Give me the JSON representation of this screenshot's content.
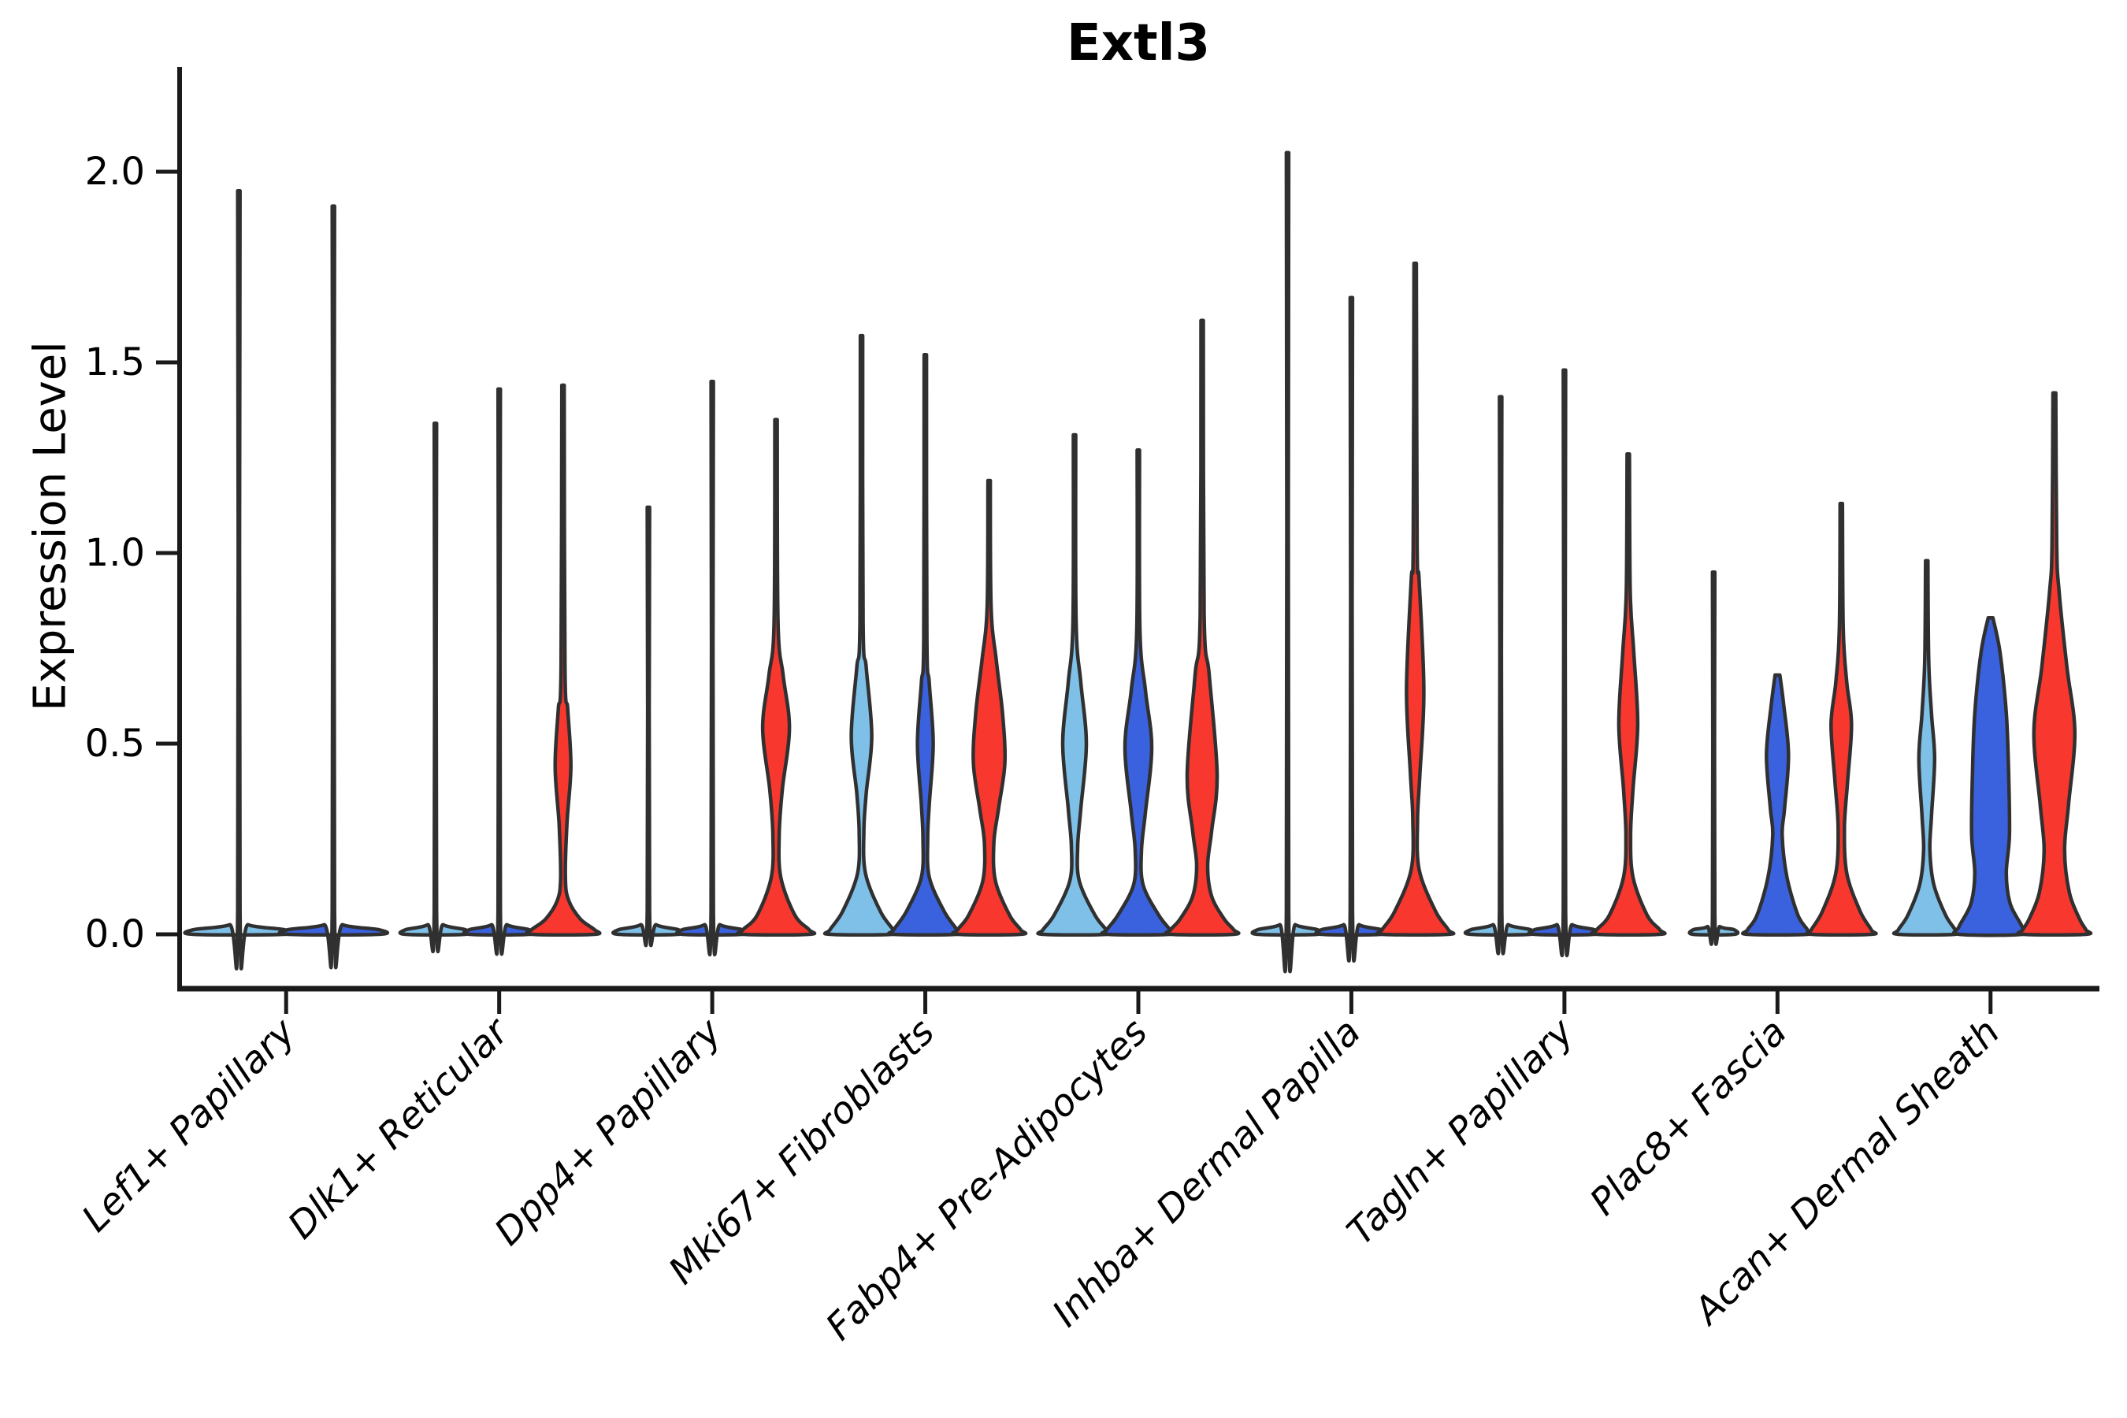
{
  "chart_data": {
    "type": "violin",
    "title": "Extl3",
    "ylabel": "Expression Level",
    "xlabel": "",
    "ytick_labels": [
      "0.0",
      "0.5",
      "1.0",
      "1.5",
      "2.0"
    ],
    "ytick_values": [
      0,
      0.5,
      1.0,
      1.5,
      2.0
    ],
    "ylim": [
      -0.08,
      2.27
    ],
    "grid": false,
    "legend_position": "none",
    "palette": {
      "light_blue": "#7EC0E8",
      "blue": "#3A62DE",
      "red": "#F8372E",
      "outline": "#303030",
      "axis": "#1A1A1A",
      "text": "#000000"
    },
    "categories": [
      "Lef1+ Papillary",
      "Dlk1+ Reticular",
      "Dpp4+ Papillary",
      "Mki67+ Fibroblasts",
      "Fabp4+ Pre-Adipocytes",
      "Inhba+ Dermal Papilla",
      "Tagln+ Papillary",
      "Plac8+ Fascia",
      "Acan+ Dermal Sheath"
    ],
    "groups": [
      {
        "category": "Lef1+ Papillary",
        "violins": [
          {
            "hue": "light_blue",
            "max": 1.95,
            "profile": [
              [
                1.95,
                1.5
              ],
              [
                0.06,
                1.5
              ],
              [
                0.025,
                12
              ],
              [
                0.012,
                58
              ],
              [
                0,
                58
              ]
            ]
          },
          {
            "hue": "blue",
            "max": 1.91,
            "profile": [
              [
                1.91,
                1.5
              ],
              [
                0.06,
                1.5
              ],
              [
                0.025,
                12
              ],
              [
                0.012,
                58
              ],
              [
                0,
                58
              ]
            ]
          }
        ]
      },
      {
        "category": "Dlk1+ Reticular",
        "violins": [
          {
            "hue": "light_blue",
            "max": 1.34,
            "profile": [
              [
                1.34,
                1.5
              ],
              [
                0.06,
                1.5
              ],
              [
                0.025,
                10
              ],
              [
                0.012,
                38
              ],
              [
                0,
                38
              ]
            ]
          },
          {
            "hue": "blue",
            "max": 1.43,
            "profile": [
              [
                1.43,
                1.5
              ],
              [
                0.06,
                1.5
              ],
              [
                0.025,
                10
              ],
              [
                0.012,
                38
              ],
              [
                0,
                38
              ]
            ]
          },
          {
            "hue": "red",
            "max": 1.44,
            "profile": [
              [
                1.44,
                1.5
              ],
              [
                0.7,
                2.5
              ],
              [
                0.59,
                6
              ],
              [
                0.44,
                10
              ],
              [
                0.29,
                5
              ],
              [
                0.15,
                3
              ],
              [
                0.09,
                7
              ],
              [
                0.04,
                22
              ],
              [
                0.012,
                40
              ],
              [
                0,
                40
              ]
            ]
          }
        ]
      },
      {
        "category": "Dpp4+ Papillary",
        "violins": [
          {
            "hue": "light_blue",
            "max": 1.12,
            "profile": [
              [
                1.12,
                1.5
              ],
              [
                0.06,
                1.5
              ],
              [
                0.025,
                10
              ],
              [
                0.012,
                38
              ],
              [
                0,
                38
              ]
            ]
          },
          {
            "hue": "blue",
            "max": 1.45,
            "profile": [
              [
                1.45,
                1.5
              ],
              [
                0.06,
                1.5
              ],
              [
                0.025,
                10
              ],
              [
                0.012,
                38
              ],
              [
                0,
                38
              ]
            ]
          },
          {
            "hue": "red",
            "max": 1.35,
            "profile": [
              [
                1.35,
                1.5
              ],
              [
                0.82,
                2.5
              ],
              [
                0.68,
                9
              ],
              [
                0.54,
                17
              ],
              [
                0.38,
                8
              ],
              [
                0.26,
                4
              ],
              [
                0.15,
                6
              ],
              [
                0.05,
                24
              ],
              [
                0.012,
                42
              ],
              [
                0,
                42
              ]
            ]
          }
        ]
      },
      {
        "category": "Mki67+ Fibroblasts",
        "violins": [
          {
            "hue": "light_blue",
            "max": 1.57,
            "profile": [
              [
                1.57,
                1.5
              ],
              [
                0.82,
                2
              ],
              [
                0.7,
                6
              ],
              [
                0.52,
                13
              ],
              [
                0.37,
                6
              ],
              [
                0.27,
                3
              ],
              [
                0.16,
                5
              ],
              [
                0.06,
                24
              ],
              [
                0.012,
                40
              ],
              [
                0,
                40
              ]
            ]
          },
          {
            "hue": "blue",
            "max": 1.52,
            "profile": [
              [
                1.52,
                1.5
              ],
              [
                0.78,
                2
              ],
              [
                0.66,
                5
              ],
              [
                0.5,
                10
              ],
              [
                0.34,
                5
              ],
              [
                0.25,
                3
              ],
              [
                0.15,
                5
              ],
              [
                0.06,
                24
              ],
              [
                0.012,
                40
              ],
              [
                0,
                40
              ]
            ]
          },
          {
            "hue": "red",
            "max": 1.19,
            "profile": [
              [
                1.19,
                1.5
              ],
              [
                0.86,
                2.5
              ],
              [
                0.72,
                9
              ],
              [
                0.58,
                17
              ],
              [
                0.45,
                20
              ],
              [
                0.33,
                12
              ],
              [
                0.24,
                6
              ],
              [
                0.14,
                8
              ],
              [
                0.05,
                26
              ],
              [
                0.012,
                40
              ],
              [
                0,
                40
              ]
            ]
          }
        ]
      },
      {
        "category": "Fabp4+ Pre-Adipocytes",
        "violins": [
          {
            "hue": "light_blue",
            "max": 1.31,
            "profile": [
              [
                1.31,
                1.5
              ],
              [
                0.82,
                2
              ],
              [
                0.66,
                8
              ],
              [
                0.5,
                15
              ],
              [
                0.33,
                8
              ],
              [
                0.23,
                4
              ],
              [
                0.14,
                6
              ],
              [
                0.05,
                26
              ],
              [
                0.012,
                40
              ],
              [
                0,
                40
              ]
            ]
          },
          {
            "hue": "blue",
            "max": 1.27,
            "profile": [
              [
                1.27,
                1.5
              ],
              [
                0.8,
                2
              ],
              [
                0.64,
                9
              ],
              [
                0.49,
                17
              ],
              [
                0.32,
                9
              ],
              [
                0.22,
                4
              ],
              [
                0.13,
                6
              ],
              [
                0.05,
                26
              ],
              [
                0.012,
                40
              ],
              [
                0,
                40
              ]
            ]
          },
          {
            "hue": "red",
            "max": 1.61,
            "profile": [
              [
                1.61,
                1.5
              ],
              [
                0.84,
                2.5
              ],
              [
                0.68,
                9
              ],
              [
                0.42,
                19
              ],
              [
                0.27,
                12
              ],
              [
                0.18,
                7
              ],
              [
                0.1,
                12
              ],
              [
                0.04,
                28
              ],
              [
                0.012,
                40
              ],
              [
                0,
                40
              ]
            ]
          }
        ]
      },
      {
        "category": "Inhba+ Dermal Papilla",
        "violins": [
          {
            "hue": "light_blue",
            "max": 2.05,
            "profile": [
              [
                2.05,
                1.5
              ],
              [
                0.06,
                1.5
              ],
              [
                0.025,
                10
              ],
              [
                0.012,
                38
              ],
              [
                0,
                38
              ]
            ]
          },
          {
            "hue": "blue",
            "max": 1.67,
            "profile": [
              [
                1.67,
                1.5
              ],
              [
                0.06,
                1.5
              ],
              [
                0.025,
                10
              ],
              [
                0.012,
                38
              ],
              [
                0,
                38
              ]
            ]
          },
          {
            "hue": "red",
            "max": 1.76,
            "profile": [
              [
                1.76,
                1.5
              ],
              [
                1.02,
                2.5
              ],
              [
                0.93,
                5
              ],
              [
                0.64,
                11
              ],
              [
                0.42,
                6
              ],
              [
                0.3,
                3
              ],
              [
                0.17,
                5
              ],
              [
                0.06,
                26
              ],
              [
                0.012,
                42
              ],
              [
                0,
                42
              ]
            ]
          }
        ]
      },
      {
        "category": "Tagln+ Papillary",
        "violins": [
          {
            "hue": "light_blue",
            "max": 1.41,
            "profile": [
              [
                1.41,
                1.5
              ],
              [
                0.06,
                1.5
              ],
              [
                0.025,
                10
              ],
              [
                0.012,
                38
              ],
              [
                0,
                38
              ]
            ]
          },
          {
            "hue": "blue",
            "max": 1.48,
            "profile": [
              [
                1.48,
                1.5
              ],
              [
                0.06,
                1.5
              ],
              [
                0.025,
                10
              ],
              [
                0.012,
                38
              ],
              [
                0,
                38
              ]
            ]
          },
          {
            "hue": "red",
            "max": 1.26,
            "profile": [
              [
                1.26,
                1.5
              ],
              [
                0.9,
                2.5
              ],
              [
                0.74,
                7
              ],
              [
                0.55,
                12
              ],
              [
                0.38,
                6
              ],
              [
                0.26,
                3
              ],
              [
                0.15,
                6
              ],
              [
                0.05,
                24
              ],
              [
                0.012,
                40
              ],
              [
                0,
                40
              ]
            ]
          }
        ]
      },
      {
        "category": "Plac8+ Fascia",
        "violins": [
          {
            "hue": "light_blue",
            "max": 0.95,
            "profile": [
              [
                0.95,
                1.5
              ],
              [
                0.05,
                1.5
              ],
              [
                0.02,
                8
              ],
              [
                0.012,
                26
              ],
              [
                0,
                26
              ]
            ]
          },
          {
            "hue": "blue",
            "max": 0.68,
            "profile": [
              [
                0.68,
                3
              ],
              [
                0.6,
                8
              ],
              [
                0.47,
                14
              ],
              [
                0.33,
                9
              ],
              [
                0.26,
                6
              ],
              [
                0.15,
                12
              ],
              [
                0.05,
                26
              ],
              [
                0.012,
                38
              ],
              [
                0,
                38
              ]
            ]
          },
          {
            "hue": "red",
            "max": 1.13,
            "profile": [
              [
                1.13,
                1.5
              ],
              [
                0.8,
                2.5
              ],
              [
                0.66,
                7
              ],
              [
                0.55,
                13
              ],
              [
                0.4,
                8
              ],
              [
                0.28,
                4
              ],
              [
                0.16,
                7
              ],
              [
                0.06,
                24
              ],
              [
                0.012,
                38
              ],
              [
                0,
                38
              ]
            ]
          }
        ]
      },
      {
        "category": "Acan+ Dermal Sheath",
        "violins": [
          {
            "hue": "light_blue",
            "max": 0.98,
            "profile": [
              [
                0.98,
                1.5
              ],
              [
                0.72,
                2.5
              ],
              [
                0.58,
                6
              ],
              [
                0.46,
                10
              ],
              [
                0.31,
                6
              ],
              [
                0.22,
                4
              ],
              [
                0.13,
                9
              ],
              [
                0.05,
                24
              ],
              [
                0.012,
                36
              ],
              [
                0,
                36
              ]
            ]
          },
          {
            "hue": "blue",
            "max": 0.83,
            "profile": [
              [
                0.83,
                3
              ],
              [
                0.74,
                12
              ],
              [
                0.58,
                20
              ],
              [
                0.42,
                23
              ],
              [
                0.26,
                24
              ],
              [
                0.16,
                20
              ],
              [
                0.08,
                25
              ],
              [
                0.02,
                40
              ],
              [
                0,
                40
              ]
            ]
          },
          {
            "hue": "red",
            "max": 1.42,
            "profile": [
              [
                1.42,
                1.8
              ],
              [
                1.02,
                3
              ],
              [
                0.9,
                6
              ],
              [
                0.7,
                16
              ],
              [
                0.53,
                26
              ],
              [
                0.34,
                18
              ],
              [
                0.22,
                13
              ],
              [
                0.11,
                19
              ],
              [
                0.04,
                32
              ],
              [
                0.012,
                40
              ],
              [
                0,
                40
              ]
            ]
          }
        ]
      }
    ]
  }
}
